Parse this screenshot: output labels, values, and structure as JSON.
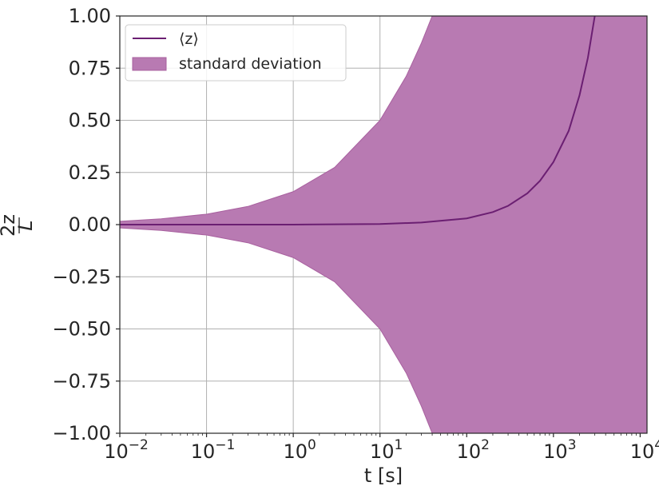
{
  "chart_data": {
    "type": "area",
    "title": "",
    "xlabel": "t [s]",
    "ylabel_num": "2z",
    "ylabel_den": "L",
    "xscale": "log",
    "xlim": [
      0.01,
      12000
    ],
    "ylim": [
      -1.0,
      1.0
    ],
    "grid": true,
    "legend_position": "top-left",
    "x_ticks": [
      {
        "value": 0.01,
        "base": "10",
        "exp": "−2"
      },
      {
        "value": 0.1,
        "base": "10",
        "exp": "−1"
      },
      {
        "value": 1,
        "base": "10",
        "exp": "0"
      },
      {
        "value": 10,
        "base": "10",
        "exp": "1"
      },
      {
        "value": 100,
        "base": "10",
        "exp": "2"
      },
      {
        "value": 1000,
        "base": "10",
        "exp": "3"
      },
      {
        "value": 10000,
        "base": "10",
        "exp": "4"
      }
    ],
    "y_ticks": [
      {
        "value": 1.0,
        "label": "1.00"
      },
      {
        "value": 0.75,
        "label": "0.75"
      },
      {
        "value": 0.5,
        "label": "0.50"
      },
      {
        "value": 0.25,
        "label": "0.25"
      },
      {
        "value": 0.0,
        "label": "0.00"
      },
      {
        "value": -0.25,
        "label": "−0.25"
      },
      {
        "value": -0.5,
        "label": "−0.50"
      },
      {
        "value": -0.75,
        "label": "−0.75"
      },
      {
        "value": -1.0,
        "label": "−1.00"
      }
    ],
    "series": [
      {
        "name": "⟨z⟩",
        "kind": "line",
        "color": "#6b1f72",
        "x": [
          0.01,
          0.1,
          1,
          10,
          30,
          100,
          200,
          300,
          500,
          700,
          1000,
          1500,
          2000,
          2500,
          3000
        ],
        "y": [
          0.0,
          0.0,
          0.0,
          0.003,
          0.01,
          0.03,
          0.06,
          0.09,
          0.15,
          0.21,
          0.3,
          0.45,
          0.62,
          0.8,
          1.0
        ]
      },
      {
        "name": "standard deviation",
        "kind": "band",
        "color": "#b87ab2",
        "edge_color": "#a8609f",
        "x": [
          0.01,
          0.03,
          0.1,
          0.3,
          1,
          3,
          10,
          20,
          30,
          40
        ],
        "half_width": [
          0.016,
          0.028,
          0.05,
          0.087,
          0.158,
          0.274,
          0.5,
          0.71,
          0.87,
          1.0
        ]
      }
    ]
  }
}
